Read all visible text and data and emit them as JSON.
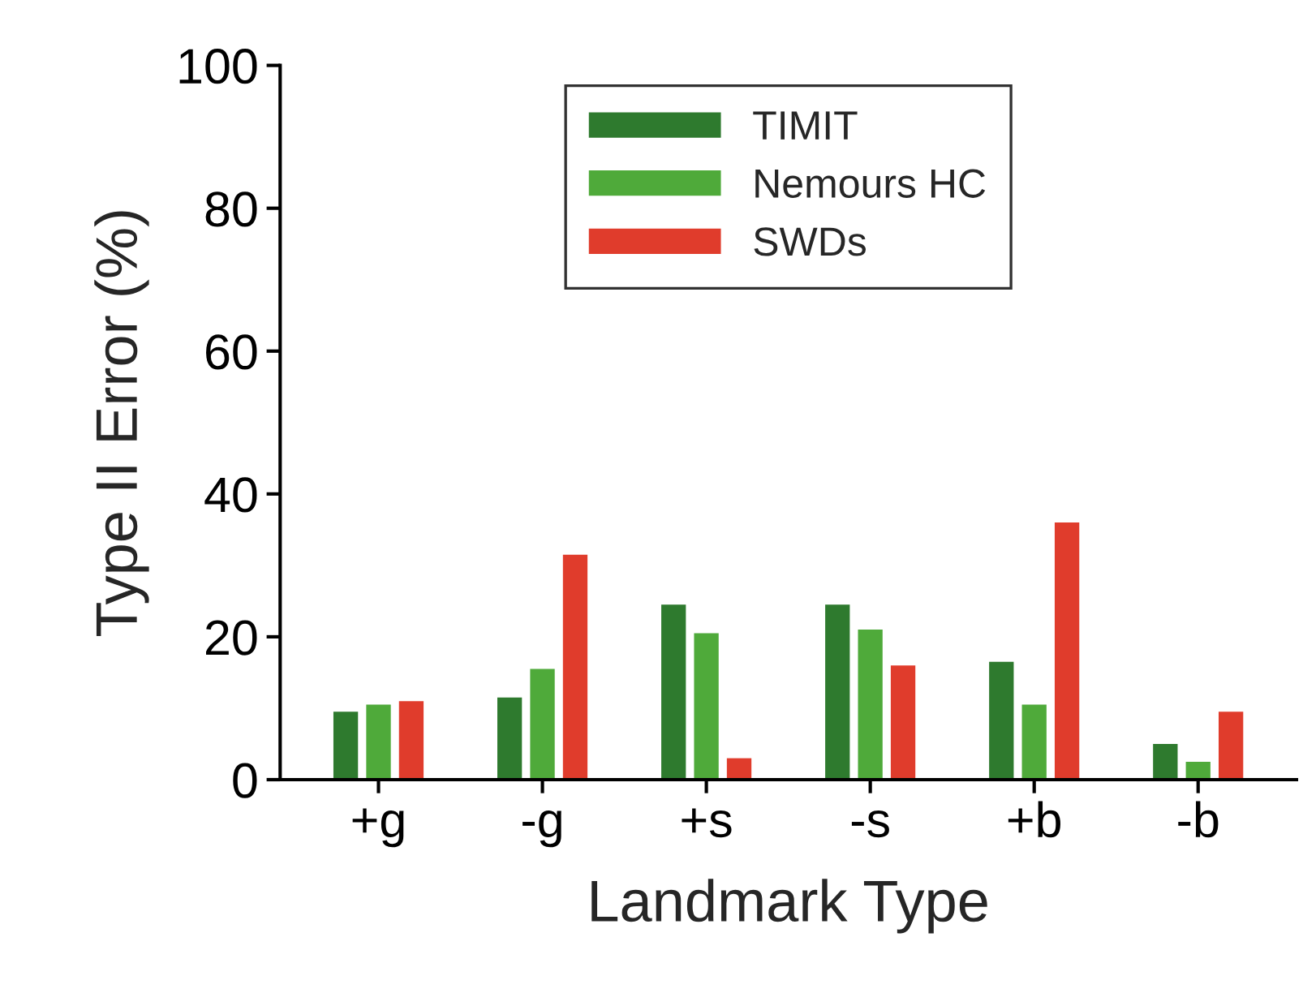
{
  "chart_data": {
    "type": "bar",
    "xlabel": "Landmark Type",
    "ylabel": "Type II Error (%)",
    "categories": [
      "+g",
      "-g",
      "+s",
      "-s",
      "+b",
      "-b"
    ],
    "series": [
      {
        "name": "TIMIT",
        "color": "#2e7a2e",
        "values": [
          9.5,
          11.5,
          24.5,
          24.5,
          16.5,
          5
        ]
      },
      {
        "name": "Nemours HC",
        "color": "#4faa3a",
        "values": [
          10.5,
          15.5,
          20.5,
          21,
          10.5,
          2.5
        ]
      },
      {
        "name": "SWDs",
        "color": "#e03c2c",
        "values": [
          11,
          31.5,
          3,
          16,
          36,
          9.5
        ]
      }
    ],
    "ylim": [
      0,
      100
    ],
    "yticks": [
      0,
      20,
      40,
      60,
      80,
      100
    ],
    "grid": false,
    "legend": "top"
  }
}
